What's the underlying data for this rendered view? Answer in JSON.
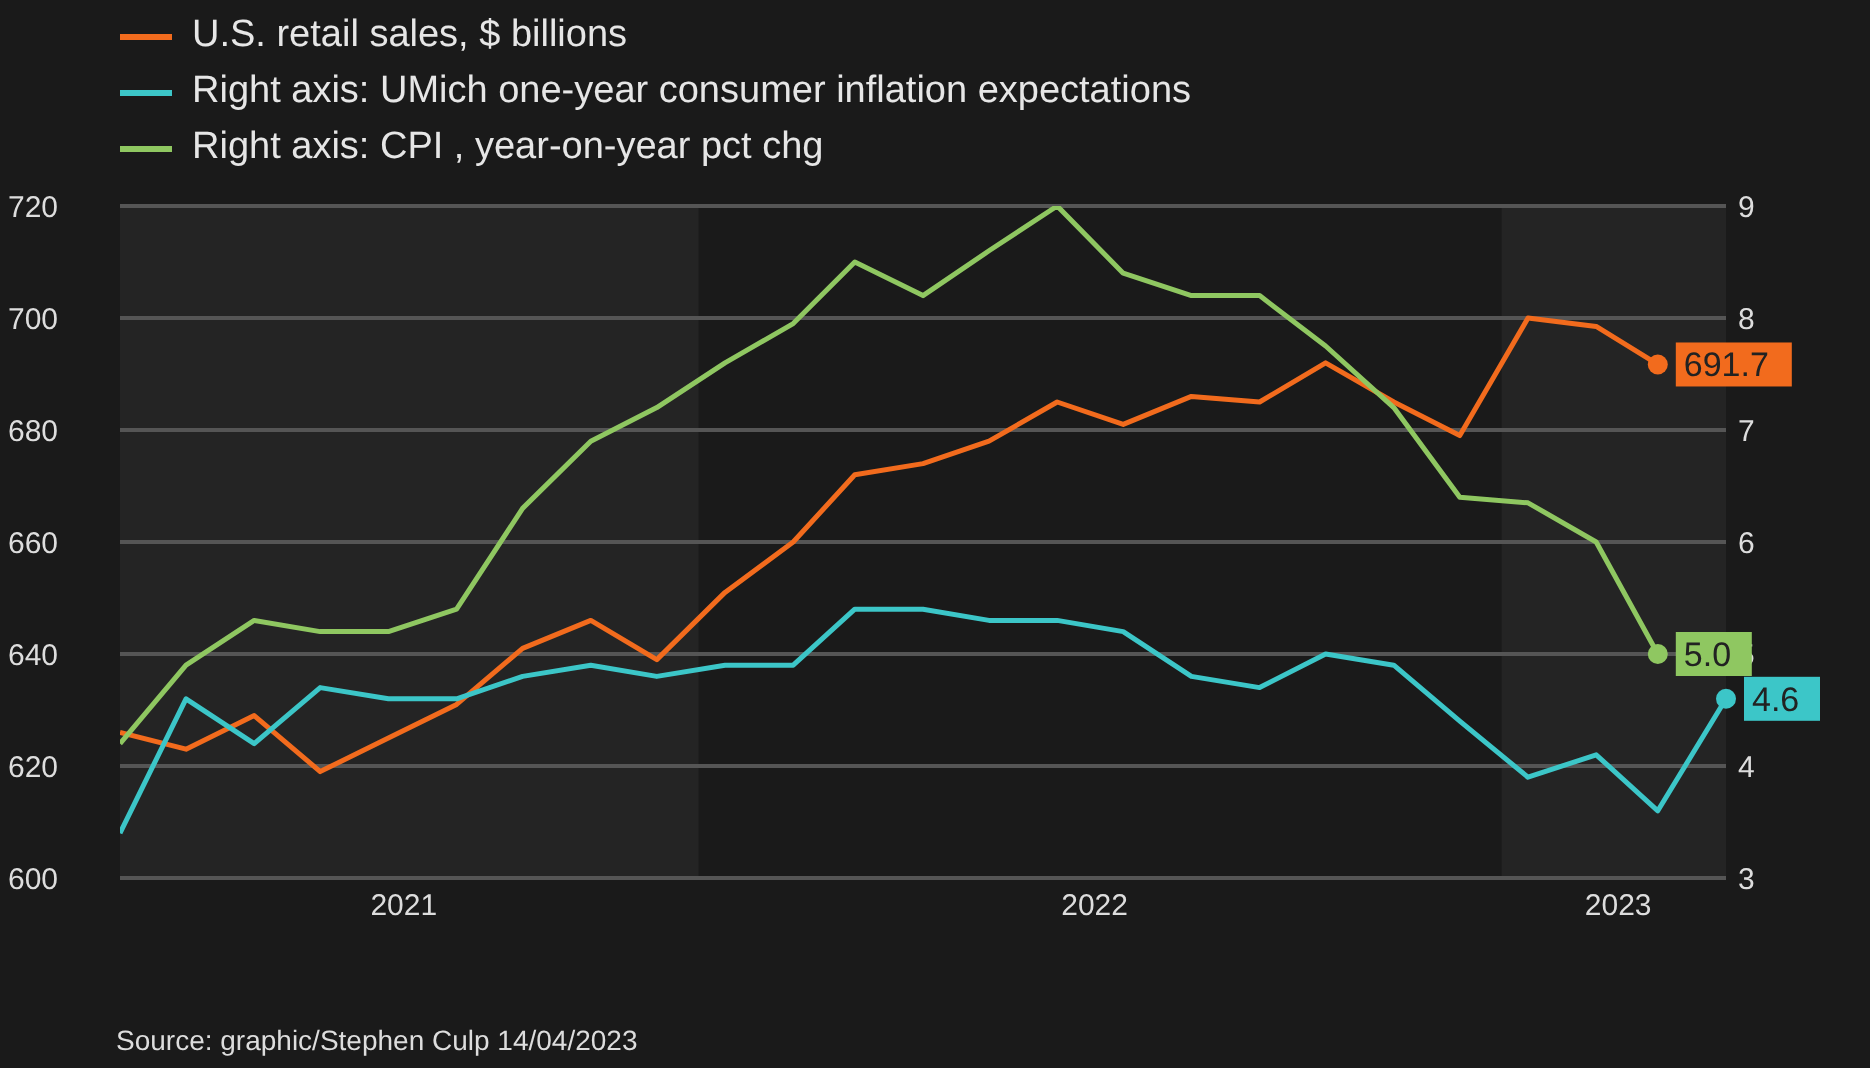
{
  "chart_data": {
    "type": "line",
    "x": [
      "2021-04",
      "2021-05",
      "2021-06",
      "2021-07",
      "2021-08",
      "2021-09",
      "2021-10",
      "2021-11",
      "2021-12",
      "2022-01",
      "2022-02",
      "2022-03",
      "2022-04",
      "2022-05",
      "2022-06",
      "2022-07",
      "2022-08",
      "2022-09",
      "2022-10",
      "2022-11",
      "2022-12",
      "2023-01",
      "2023-02",
      "2023-03",
      "2023-04"
    ],
    "series": [
      {
        "name": "U.S. retail sales, $ billions",
        "color": "#f26b1d",
        "values": [
          626,
          623,
          629,
          619,
          625,
          631,
          641,
          646,
          639,
          651,
          660,
          672,
          674,
          678,
          685,
          681,
          686,
          685,
          692,
          685,
          679,
          700,
          698.5,
          691.7,
          null
        ],
        "value_labels": [
          null,
          null,
          null,
          null,
          null,
          null,
          null,
          null,
          null,
          null,
          null,
          null,
          null,
          null,
          null,
          null,
          null,
          null,
          null,
          null,
          null,
          null,
          null,
          "691.7",
          null
        ]
      },
      {
        "name": "Right axis: UMich one-year consumer inflation expectations",
        "color": "#3cc6c8",
        "axis": "y2",
        "values": [
          3.4,
          4.6,
          4.2,
          4.7,
          4.6,
          4.6,
          4.8,
          4.9,
          4.8,
          4.9,
          4.9,
          5.4,
          5.4,
          5.3,
          5.3,
          5.2,
          4.8,
          4.7,
          5.0,
          4.9,
          4.4,
          3.9,
          4.1,
          3.6,
          4.6
        ],
        "value_labels": [
          null,
          null,
          null,
          null,
          null,
          null,
          null,
          null,
          null,
          null,
          null,
          null,
          null,
          null,
          null,
          null,
          null,
          null,
          null,
          null,
          null,
          null,
          null,
          null,
          "4.6"
        ]
      },
      {
        "name": "Right axis: CPI , year-on-year pct chg",
        "color": "#8fc761",
        "axis": "y2",
        "values": [
          4.2,
          4.9,
          5.3,
          5.2,
          5.2,
          5.4,
          6.3,
          6.9,
          7.2,
          7.6,
          7.95,
          8.5,
          8.2,
          8.6,
          9.0,
          8.4,
          8.2,
          8.2,
          7.75,
          7.2,
          6.4,
          6.35,
          6.0,
          5.0,
          null
        ],
        "value_labels": [
          null,
          null,
          null,
          null,
          null,
          null,
          null,
          null,
          null,
          null,
          null,
          null,
          null,
          null,
          null,
          null,
          null,
          null,
          null,
          null,
          null,
          null,
          null,
          "5.0",
          null
        ]
      }
    ],
    "xlim": [
      "2021-04",
      "2023-04"
    ],
    "xticks": [
      {
        "value": "2021-08-08",
        "label": "2021"
      },
      {
        "value": "2022-06-18",
        "label": "2022"
      },
      {
        "value": "2023-02-11",
        "label": "2023"
      }
    ],
    "ylim": [
      600,
      720
    ],
    "yticks": [
      600,
      620,
      640,
      660,
      680,
      700,
      720
    ],
    "y2lim": [
      3,
      9
    ],
    "y2ticks": [
      3,
      4,
      5,
      6,
      7,
      8,
      9
    ],
    "bands": [
      {
        "axis": "x",
        "from": "2021-04",
        "to": "2021-12-20",
        "color": "#242424"
      },
      {
        "axis": "x",
        "from": "2022-12-20",
        "to": "2023-04",
        "color": "#242424"
      }
    ],
    "grid": "y",
    "legend": "top left",
    "line_style": "solid",
    "marker": "none",
    "annotations": [
      "Source: graphic/Stephen Culp 14/04/2023"
    ]
  }
}
